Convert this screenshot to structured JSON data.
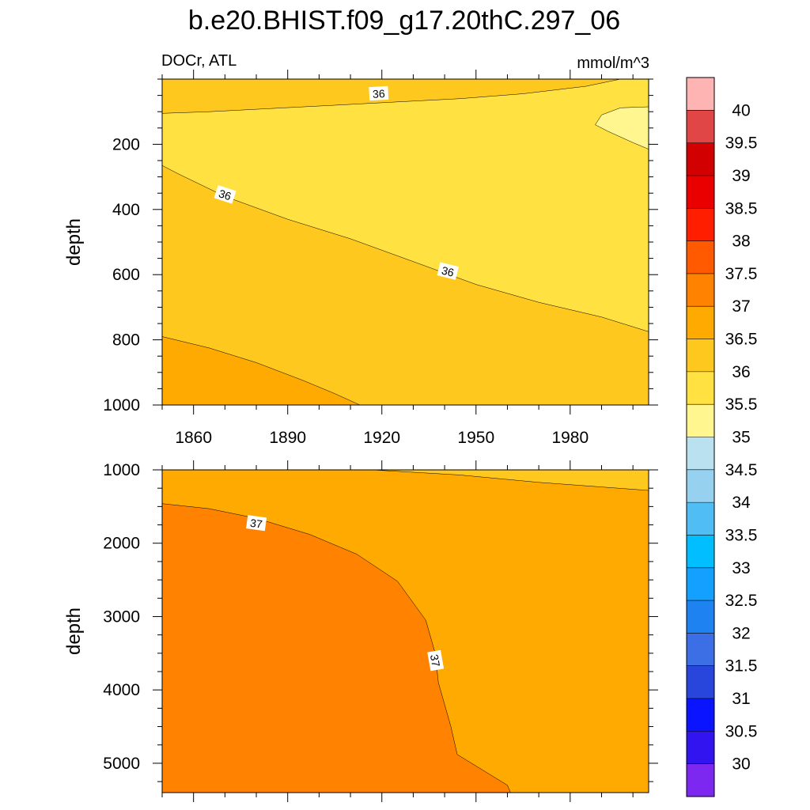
{
  "chart_data": {
    "type": "contour",
    "title": "b.e20.BHIST.f09_g17.20thC.297_06",
    "left_label": "DOCr, ATL",
    "right_label": "mmol/m^3",
    "x_range": [
      1850,
      2005
    ],
    "x_ticks": [
      1860,
      1890,
      1920,
      1950,
      1980
    ],
    "panels": [
      {
        "name": "upper",
        "ylabel": "depth",
        "ylim": [
          0,
          1000
        ],
        "y_ticks": [
          200,
          400,
          600,
          800,
          1000
        ],
        "regions": [
          {
            "level": "36-36.5",
            "color": "#FFC81E",
            "boundary": [
              [
                1850,
                0
              ],
              [
                2005,
                0
              ],
              [
                2005,
                1000
              ],
              [
                1850,
                1000
              ]
            ]
          },
          {
            "level": "35.5-36",
            "color": "#FFE141",
            "boundary": [
              [
                1850,
                105
              ],
              [
                1865,
                100
              ],
              [
                1885,
                90
              ],
              [
                1905,
                80
              ],
              [
                1925,
                70
              ],
              [
                1945,
                60
              ],
              [
                1965,
                45
              ],
              [
                1985,
                22
              ],
              [
                1996,
                0
              ],
              [
                2005,
                0
              ],
              [
                2005,
                775
              ],
              [
                1990,
                730
              ],
              [
                1970,
                685
              ],
              [
                1950,
                630
              ],
              [
                1930,
                560
              ],
              [
                1910,
                490
              ],
              [
                1890,
                430
              ],
              [
                1870,
                360
              ],
              [
                1855,
                290
              ],
              [
                1850,
                265
              ]
            ]
          },
          {
            "level": "35-35.5",
            "color": "#FFF68F",
            "boundary": [
              [
                2005,
                85
              ],
              [
                1996,
                88
              ],
              [
                1990,
                110
              ],
              [
                1988,
                140
              ],
              [
                1992,
                160
              ],
              [
                2000,
                195
              ],
              [
                2005,
                215
              ]
            ]
          },
          {
            "level": "36.5-37",
            "color": "#FFAA00",
            "boundary": [
              [
                1850,
                790
              ],
              [
                1865,
                825
              ],
              [
                1880,
                870
              ],
              [
                1895,
                925
              ],
              [
                1905,
                965
              ],
              [
                1913,
                1000
              ],
              [
                1850,
                1000
              ]
            ]
          }
        ],
        "contour_labels": [
          {
            "text": "36",
            "x": 1919,
            "y": 45,
            "angle": -3
          },
          {
            "text": "36",
            "x": 1870,
            "y": 355,
            "angle": 18
          },
          {
            "text": "36",
            "x": 1941,
            "y": 590,
            "angle": 14
          }
        ]
      },
      {
        "name": "lower",
        "ylabel": "depth",
        "ylim": [
          1000,
          5400
        ],
        "y_ticks": [
          1000,
          2000,
          3000,
          4000,
          5000
        ],
        "regions": [
          {
            "level": "36.5-37",
            "color": "#FFAA00",
            "boundary": [
              [
                1850,
                1000
              ],
              [
                2005,
                1000
              ],
              [
                2005,
                5400
              ],
              [
                1850,
                5400
              ]
            ]
          },
          {
            "level": "36-36.5",
            "color": "#FFC81E",
            "boundary": [
              [
                1917,
                1000
              ],
              [
                1945,
                1070
              ],
              [
                1970,
                1170
              ],
              [
                2005,
                1280
              ],
              [
                2005,
                1000
              ]
            ]
          },
          {
            "level": "37-37.5",
            "color": "#FF8200",
            "boundary": [
              [
                1850,
                1460
              ],
              [
                1865,
                1530
              ],
              [
                1880,
                1660
              ],
              [
                1897,
                1880
              ],
              [
                1912,
                2150
              ],
              [
                1925,
                2520
              ],
              [
                1934,
                3050
              ],
              [
                1937,
                3500
              ],
              [
                1938,
                3900
              ],
              [
                1942,
                4500
              ],
              [
                1944,
                4880
              ],
              [
                1960,
                5300
              ],
              [
                1961,
                5400
              ],
              [
                1850,
                5400
              ]
            ]
          }
        ],
        "contour_labels": [
          {
            "text": "37",
            "x": 1880,
            "y": 1730,
            "angle": 8
          },
          {
            "text": "37",
            "x": 1937,
            "y": 3600,
            "angle": 80
          }
        ]
      }
    ],
    "colorbar": {
      "labels": [
        "40",
        "39.5",
        "39",
        "38.5",
        "38",
        "37.5",
        "37",
        "36.5",
        "36",
        "35.5",
        "35",
        "34.5",
        "34",
        "33.5",
        "33",
        "32.5",
        "32",
        "31.5",
        "31",
        "30.5",
        "30"
      ],
      "colors": [
        "#FFB4B4",
        "#E14646",
        "#D20000",
        "#EB0000",
        "#FF1E00",
        "#FF5A00",
        "#FF8200",
        "#FFAA00",
        "#FFC81E",
        "#FFE141",
        "#FFF68F",
        "#B9E1F0",
        "#96D2F0",
        "#50BEF5",
        "#00BEFF",
        "#14A0FF",
        "#1E82F0",
        "#3C6EE6",
        "#2846DC",
        "#0A14FF",
        "#3214F0",
        "#7D28F0"
      ]
    }
  }
}
